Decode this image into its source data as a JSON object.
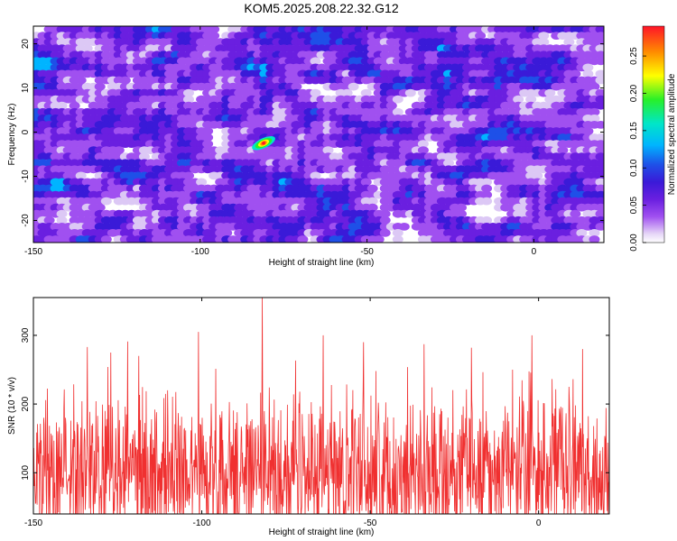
{
  "title": "KOM5.2025.208.22.32.G12",
  "colors": {
    "line": "#f03030",
    "spectrogram_background": "#ffffff",
    "colormap": [
      "#ffffff",
      "#dcc8f5",
      "#a050f0",
      "#6a1fe0",
      "#3a1ad8",
      "#1e50e8",
      "#00b4ff",
      "#00e6c8",
      "#28f028",
      "#ffff00",
      "#ff8c00",
      "#ff1428"
    ]
  },
  "chart_data": [
    {
      "type": "heatmap",
      "xlabel": "Height of straight line (km)",
      "ylabel": "Frequency (Hz)",
      "xlim": [
        -150,
        21
      ],
      "ylim": [
        -25,
        24
      ],
      "xticks": [
        -150,
        -100,
        -50,
        0
      ],
      "yticks": [
        -20,
        -10,
        0,
        10,
        20
      ],
      "grid": false,
      "colorbar": {
        "label": "Normalized spectral amplitude",
        "range": [
          0,
          0.29
        ],
        "ticks": [
          "0.00",
          "0.05",
          "0.10",
          "0.15",
          "0.20",
          "0.25"
        ]
      },
      "peak": {
        "x": -81,
        "y": -2.5,
        "value": 0.29
      },
      "noise_amplitude_range": [
        0,
        0.1
      ]
    },
    {
      "type": "line",
      "xlabel": "Height of straight line (km)",
      "ylabel": "SNR (10 * v/v)",
      "xlim": [
        -150,
        21
      ],
      "ylim": [
        40,
        355
      ],
      "xticks": [
        -150,
        -100,
        -50,
        0
      ],
      "yticks": [
        100,
        200,
        300
      ],
      "grid": false,
      "mean_value": 100,
      "typical_range": [
        40,
        290
      ],
      "max": {
        "x": -82,
        "y": 355
      },
      "notable_peaks": [
        {
          "x": -147,
          "y": 180
        },
        {
          "x": -134,
          "y": 283
        },
        {
          "x": -127,
          "y": 275
        },
        {
          "x": -122,
          "y": 291
        },
        {
          "x": -101,
          "y": 305
        },
        {
          "x": -82,
          "y": 355
        },
        {
          "x": -64,
          "y": 300
        },
        {
          "x": -52,
          "y": 290
        },
        {
          "x": -34,
          "y": 287
        },
        {
          "x": -20,
          "y": 282
        },
        {
          "x": -2,
          "y": 300
        },
        {
          "x": 13,
          "y": 280
        }
      ]
    }
  ]
}
